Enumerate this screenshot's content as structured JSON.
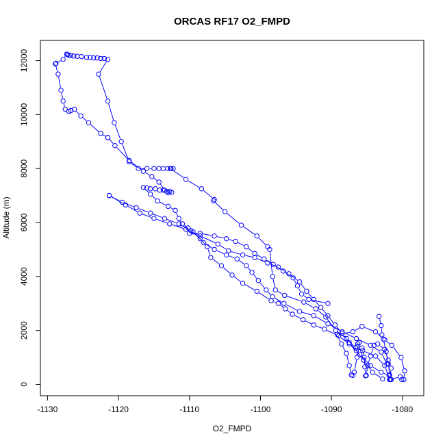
{
  "chart_data": {
    "type": "scatter",
    "title": "ORCAS RF17 O2_FMPD",
    "xlabel": "O2_FMPD",
    "ylabel": "Altitude (m)",
    "xlim": [
      -1131,
      -1077
    ],
    "ylim": [
      -420,
      12750
    ],
    "xticks": [
      -1130,
      -1120,
      -1110,
      -1100,
      -1090,
      -1080
    ],
    "yticks": [
      0,
      2000,
      4000,
      6000,
      8000,
      10000,
      12000
    ],
    "grid": false,
    "legend": "none",
    "color": "#0000ff",
    "marker": "open-circle",
    "lines": true,
    "series": [
      {
        "values": [
          [
            -1083.3,
            2520
          ],
          [
            -1083.0,
            2180
          ],
          [
            -1082.9,
            1840
          ],
          [
            -1082.7,
            1680
          ],
          [
            -1082.3,
            1220
          ],
          [
            -1082.0,
            760
          ],
          [
            -1081.8,
            360
          ],
          [
            -1081.6,
            180
          ],
          [
            -1081.7,
            180
          ],
          [
            -1081.8,
            180
          ],
          [
            -1080.3,
            280
          ],
          [
            -1080.1,
            180
          ],
          [
            -1079.8,
            180
          ],
          [
            -1079.7,
            500
          ],
          [
            -1080.2,
            1000
          ],
          [
            -1081.5,
            1450
          ],
          [
            -1082.5,
            1650
          ],
          [
            -1083.8,
            1950
          ],
          [
            -1085.7,
            2150
          ],
          [
            -1087.0,
            1950
          ],
          [
            -1089.2,
            1850
          ],
          [
            -1088.6,
            1500
          ],
          [
            -1087.9,
            1150
          ],
          [
            -1087.5,
            700
          ],
          [
            -1087.2,
            350
          ],
          [
            -1087.0,
            330
          ],
          [
            -1086.8,
            450
          ],
          [
            -1086.4,
            1000
          ],
          [
            -1086.4,
            1400
          ],
          [
            -1086.3,
            1500
          ],
          [
            -1086.1,
            1550
          ],
          [
            -1085.7,
            1350
          ],
          [
            -1085.4,
            1000
          ],
          [
            -1085.3,
            650
          ],
          [
            -1085.2,
            320
          ],
          [
            -1085.1,
            330
          ],
          [
            -1084.9,
            700
          ],
          [
            -1084.5,
            1050
          ],
          [
            -1084.0,
            1450
          ],
          [
            -1083.5,
            1500
          ],
          [
            -1082.5,
            1300
          ],
          [
            -1082.0,
            900
          ],
          [
            -1081.6,
            600
          ],
          [
            -1081.8,
            180
          ]
        ]
      },
      {
        "values": [
          [
            -1081.8,
            180
          ],
          [
            -1082.5,
            700
          ],
          [
            -1083.8,
            1050
          ],
          [
            -1085.6,
            1250
          ],
          [
            -1086.6,
            1350
          ],
          [
            -1087.9,
            1700
          ],
          [
            -1089.4,
            2000
          ],
          [
            -1090.8,
            2500
          ],
          [
            -1092.2,
            2800
          ],
          [
            -1093.9,
            3050
          ],
          [
            -1096.6,
            3300
          ],
          [
            -1097.9,
            3500
          ],
          [
            -1098.3,
            4000
          ],
          [
            -1098.7,
            5000
          ],
          [
            -1099.0,
            5100
          ],
          [
            -1100.5,
            5500
          ],
          [
            -1102.7,
            5900
          ],
          [
            -1105.0,
            6400
          ],
          [
            -1106.6,
            6800
          ],
          [
            -1106.5,
            6850
          ],
          [
            -1108.3,
            7250
          ],
          [
            -1110.5,
            7600
          ],
          [
            -1112.7,
            8000
          ],
          [
            -1112.6,
            8000
          ],
          [
            -1112.3,
            8000
          ],
          [
            -1113.1,
            8000
          ],
          [
            -1113.7,
            8000
          ],
          [
            -1114.3,
            8000
          ],
          [
            -1115.0,
            8000
          ],
          [
            -1116.0,
            8000
          ],
          [
            -1117.2,
            8000
          ],
          [
            -1118.5,
            8250
          ],
          [
            -1119.6,
            9000
          ],
          [
            -1120.6,
            9700
          ],
          [
            -1121.5,
            10500
          ],
          [
            -1122.8,
            11500
          ],
          [
            -1121.5,
            12050
          ],
          [
            -1122.0,
            12080
          ],
          [
            -1122.5,
            12080
          ],
          [
            -1123.0,
            12100
          ],
          [
            -1123.5,
            12100
          ],
          [
            -1124.0,
            12120
          ],
          [
            -1124.5,
            12120
          ],
          [
            -1125.2,
            12150
          ],
          [
            -1125.8,
            12160
          ],
          [
            -1126.3,
            12170
          ],
          [
            -1126.7,
            12190
          ],
          [
            -1127.0,
            12200
          ],
          [
            -1127.2,
            12230
          ],
          [
            -1127.3,
            12240
          ],
          [
            -1127.8,
            12050
          ],
          [
            -1128.8,
            11900
          ],
          [
            -1128.9,
            11880
          ],
          [
            -1128.5,
            11500
          ],
          [
            -1128.1,
            10900
          ],
          [
            -1127.8,
            10500
          ],
          [
            -1127.5,
            10200
          ],
          [
            -1127.0,
            10120
          ],
          [
            -1126.7,
            10150
          ],
          [
            -1126.2,
            10200
          ],
          [
            -1125.3,
            9950
          ],
          [
            -1124.2,
            9700
          ],
          [
            -1122.5,
            9300
          ],
          [
            -1121.5,
            9150
          ]
        ]
      },
      {
        "values": [
          [
            -1121.5,
            9150
          ],
          [
            -1120.5,
            8850
          ],
          [
            -1118.5,
            8300
          ],
          [
            -1116.5,
            7900
          ],
          [
            -1115.3,
            7700
          ],
          [
            -1114.3,
            7500
          ],
          [
            -1113.5,
            7200
          ],
          [
            -1113.0,
            7100
          ],
          [
            -1112.5,
            7120
          ],
          [
            -1112.8,
            7150
          ],
          [
            -1113.2,
            7150
          ],
          [
            -1113.7,
            7200
          ],
          [
            -1114.2,
            7200
          ],
          [
            -1114.8,
            7250
          ],
          [
            -1115.5,
            7250
          ],
          [
            -1116.0,
            7280
          ],
          [
            -1116.5,
            7300
          ],
          [
            -1115.5,
            7050
          ],
          [
            -1114.5,
            6800
          ],
          [
            -1113.0,
            6600
          ],
          [
            -1112.0,
            6450
          ],
          [
            -1111.5,
            6150
          ],
          [
            -1111.0,
            5950
          ],
          [
            -1110.2,
            5800
          ],
          [
            -1109.5,
            5650
          ],
          [
            -1108.0,
            5250
          ],
          [
            -1106.5,
            5000
          ],
          [
            -1104.8,
            4800
          ],
          [
            -1103.3,
            4650
          ],
          [
            -1102.0,
            4400
          ],
          [
            -1101.2,
            4150
          ],
          [
            -1100.3,
            3850
          ],
          [
            -1099.2,
            3500
          ],
          [
            -1098.3,
            3250
          ],
          [
            -1096.7,
            3000
          ],
          [
            -1094.5,
            2700
          ],
          [
            -1092.5,
            2550
          ],
          [
            -1090.5,
            2250
          ],
          [
            -1088.5,
            1950
          ],
          [
            -1086.5,
            1700
          ],
          [
            -1084.5,
            1450
          ],
          [
            -1083.0,
            1200
          ],
          [
            -1082.2,
            750
          ]
        ]
      },
      {
        "values": [
          [
            -1121.3,
            7000
          ],
          [
            -1119.0,
            6650
          ],
          [
            -1117.0,
            6350
          ],
          [
            -1115.0,
            6150
          ],
          [
            -1112.8,
            5950
          ],
          [
            -1110.5,
            5750
          ],
          [
            -1108.5,
            5500
          ],
          [
            -1106.0,
            5200
          ],
          [
            -1104.5,
            4950
          ],
          [
            -1102.5,
            4800
          ],
          [
            -1100.8,
            4700
          ],
          [
            -1099.0,
            4500
          ],
          [
            -1097.5,
            4350
          ],
          [
            -1096.0,
            4100
          ],
          [
            -1094.5,
            3800
          ],
          [
            -1093.5,
            3450
          ],
          [
            -1092.5,
            3150
          ],
          [
            -1091.5,
            2850
          ],
          [
            -1090.5,
            2550
          ],
          [
            -1089.5,
            2200
          ],
          [
            -1088.5,
            1900
          ],
          [
            -1087.5,
            1550
          ],
          [
            -1086.0,
            1100
          ],
          [
            -1084.5,
            700
          ],
          [
            -1083.0,
            450
          ],
          [
            -1081.9,
            330
          ]
        ]
      },
      {
        "values": [
          [
            -1121.3,
            7000
          ],
          [
            -1119.5,
            6750
          ],
          [
            -1117.5,
            6550
          ],
          [
            -1115.5,
            6350
          ],
          [
            -1113.5,
            6150
          ],
          [
            -1111.5,
            5950
          ],
          [
            -1109.8,
            5700
          ],
          [
            -1108.5,
            5400
          ],
          [
            -1107.5,
            5100
          ],
          [
            -1107.0,
            4700
          ],
          [
            -1105.5,
            4400
          ],
          [
            -1104.0,
            4050
          ],
          [
            -1102.5,
            3750
          ],
          [
            -1100.5,
            3450
          ],
          [
            -1098.5,
            3100
          ],
          [
            -1097.5,
            3000
          ],
          [
            -1096.5,
            2800
          ],
          [
            -1095.5,
            2600
          ],
          [
            -1094.0,
            2400
          ],
          [
            -1092.5,
            2200
          ],
          [
            -1091.0,
            2050
          ],
          [
            -1089.0,
            1800
          ],
          [
            -1087.5,
            1500
          ],
          [
            -1086.5,
            1250
          ],
          [
            -1085.5,
            900
          ],
          [
            -1084.2,
            450
          ],
          [
            -1082.8,
            200
          ]
        ]
      },
      {
        "values": [
          [
            -1110.0,
            5600
          ],
          [
            -1108.5,
            5600
          ],
          [
            -1106.5,
            5500
          ],
          [
            -1104.8,
            5400
          ],
          [
            -1103.5,
            5300
          ],
          [
            -1102.0,
            5100
          ],
          [
            -1100.8,
            4850
          ],
          [
            -1099.5,
            4650
          ],
          [
            -1098.2,
            4450
          ],
          [
            -1096.8,
            4200
          ],
          [
            -1095.4,
            3950
          ],
          [
            -1094.8,
            3650
          ],
          [
            -1094.2,
            3350
          ],
          [
            -1093.2,
            3150
          ],
          [
            -1090.5,
            3000
          ]
        ]
      }
    ]
  }
}
